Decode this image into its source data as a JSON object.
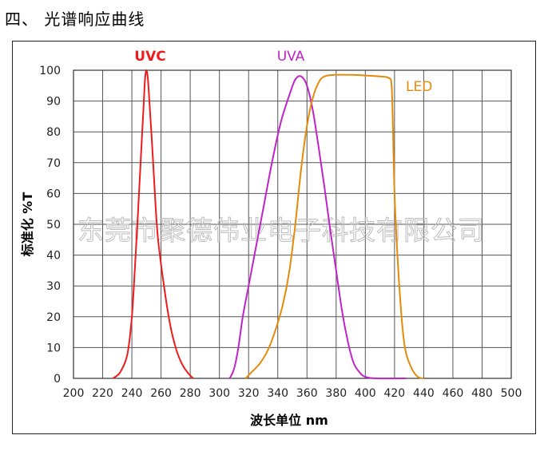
{
  "heading": "四、  光谱响应曲线",
  "watermark": "东莞市聚德伟业电子科技有限公司",
  "colors": {
    "uvc": "#ee1c1c",
    "uva": "#c023c9",
    "led": "#e68a0c",
    "grid": "#555555"
  },
  "chart_data": {
    "type": "line",
    "xlabel": "波长单位 nm",
    "ylabel": "标准化 %T",
    "xlim": [
      200,
      500
    ],
    "ylim": [
      0,
      100
    ],
    "x_ticks": [
      200,
      220,
      240,
      260,
      280,
      300,
      320,
      340,
      360,
      380,
      400,
      420,
      440,
      460,
      480,
      500
    ],
    "y_ticks": [
      0,
      10,
      20,
      30,
      40,
      50,
      60,
      70,
      80,
      90,
      100
    ],
    "grid": true,
    "legend": "curve labels above peaks",
    "series": [
      {
        "name": "UVC",
        "color": "#ee1c1c",
        "points": [
          [
            227,
            0
          ],
          [
            232,
            2
          ],
          [
            237,
            8
          ],
          [
            240,
            20
          ],
          [
            242,
            35
          ],
          [
            244,
            52
          ],
          [
            246,
            70
          ],
          [
            248,
            88
          ],
          [
            249,
            97
          ],
          [
            250,
            100
          ],
          [
            251,
            97
          ],
          [
            252,
            90
          ],
          [
            254,
            75
          ],
          [
            256,
            58
          ],
          [
            258,
            45
          ],
          [
            262,
            30
          ],
          [
            266,
            18
          ],
          [
            270,
            10
          ],
          [
            274,
            5
          ],
          [
            278,
            2
          ],
          [
            282,
            0
          ]
        ]
      },
      {
        "name": "UVA",
        "color": "#c023c9",
        "points": [
          [
            307,
            0
          ],
          [
            310,
            3
          ],
          [
            313,
            10
          ],
          [
            316,
            20
          ],
          [
            320,
            30
          ],
          [
            324,
            40
          ],
          [
            330,
            55
          ],
          [
            336,
            70
          ],
          [
            342,
            83
          ],
          [
            348,
            92
          ],
          [
            352,
            97
          ],
          [
            356,
            98
          ],
          [
            360,
            95
          ],
          [
            364,
            87
          ],
          [
            368,
            75
          ],
          [
            372,
            62
          ],
          [
            376,
            48
          ],
          [
            380,
            35
          ],
          [
            384,
            22
          ],
          [
            388,
            12
          ],
          [
            392,
            5
          ],
          [
            396,
            2
          ],
          [
            400,
            0.5
          ],
          [
            408,
            0
          ],
          [
            428,
            0
          ]
        ]
      },
      {
        "name": "LED",
        "color": "#e68a0c",
        "points": [
          [
            318,
            0
          ],
          [
            322,
            2
          ],
          [
            328,
            5
          ],
          [
            334,
            10
          ],
          [
            340,
            18
          ],
          [
            344,
            25
          ],
          [
            348,
            35
          ],
          [
            352,
            50
          ],
          [
            356,
            68
          ],
          [
            360,
            82
          ],
          [
            364,
            91
          ],
          [
            368,
            96
          ],
          [
            372,
            98
          ],
          [
            380,
            98.5
          ],
          [
            390,
            98.5
          ],
          [
            400,
            98.3
          ],
          [
            410,
            98
          ],
          [
            416,
            97.5
          ],
          [
            418,
            95
          ],
          [
            419,
            80
          ],
          [
            420,
            60
          ],
          [
            422,
            40
          ],
          [
            424,
            25
          ],
          [
            426,
            14
          ],
          [
            428,
            8
          ],
          [
            432,
            3
          ],
          [
            436,
            0.5
          ],
          [
            440,
            0
          ]
        ]
      }
    ]
  }
}
